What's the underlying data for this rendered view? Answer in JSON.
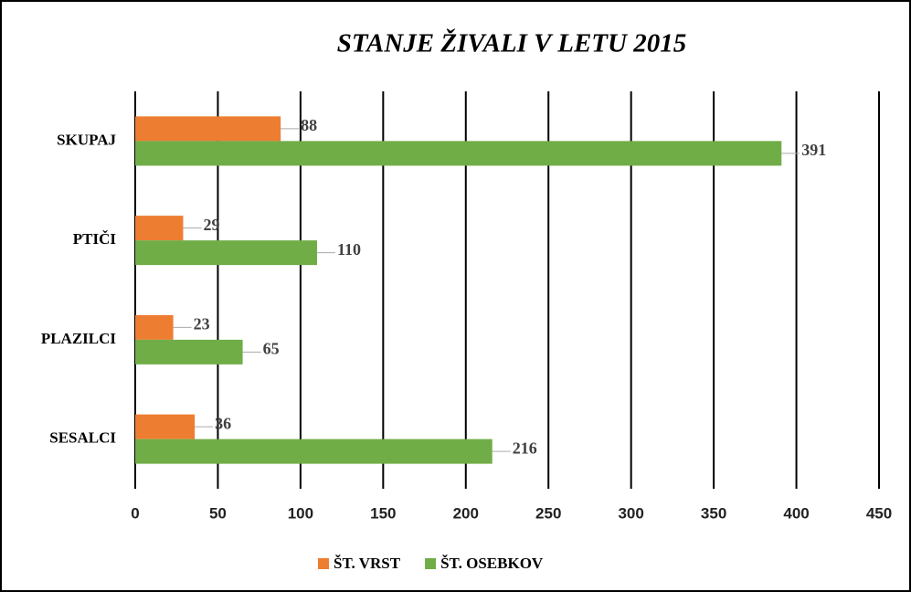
{
  "chart_data": {
    "type": "hbar",
    "title": "STANJE ŽIVALI V LETU 2015",
    "categories": [
      "SKUPAJ",
      "PTIČI",
      "PLAZILCI",
      "SESALCI"
    ],
    "series": [
      {
        "name": "ŠT. VRST",
        "color": "#ed7d31",
        "values": [
          88,
          29,
          23,
          36
        ]
      },
      {
        "name": "ŠT. OSEBKOV",
        "color": "#70ad47",
        "values": [
          391,
          110,
          65,
          216
        ]
      }
    ],
    "xlim": [
      0,
      450
    ],
    "xticks": [
      0,
      50,
      100,
      150,
      200,
      250,
      300,
      350,
      400,
      450
    ],
    "grid": true,
    "legend": "bottom"
  }
}
